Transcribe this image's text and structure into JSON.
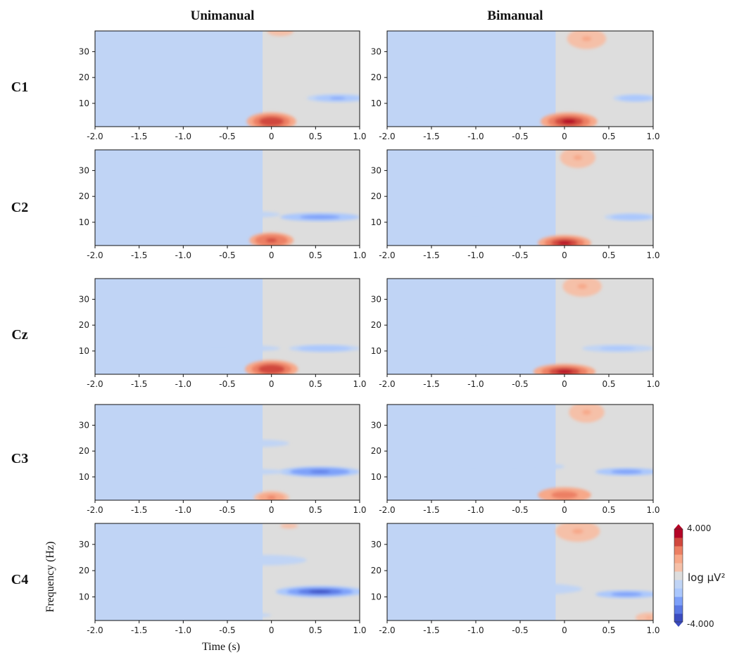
{
  "figure": {
    "columns": [
      "Unimanual",
      "Bimanual"
    ],
    "rows": [
      "C1",
      "C2",
      "Cz",
      "C3",
      "C4"
    ],
    "xlabel": "Time (s)",
    "ylabel": "Frequency (Hz)",
    "colorbar": {
      "max_label": "4.000",
      "min_label": "-4.000",
      "label": "log μV²"
    }
  },
  "chart_data": {
    "type": "heatmap",
    "xlim": [
      -2.0,
      1.0
    ],
    "ylim": [
      1,
      38
    ],
    "x_ticks": [
      -2.0,
      -1.5,
      -1.0,
      -0.5,
      0,
      0.5,
      1.0
    ],
    "x_tick_labels": [
      "-2.0",
      "-1.5",
      "-1.0",
      "-0.5",
      "0",
      "0.5",
      "1.0"
    ],
    "y_ticks": [
      10,
      20,
      30
    ],
    "clim": [
      -4.0,
      4.0
    ],
    "colormap": [
      "#3b4cc0",
      "#5a78e4",
      "#7da0f9",
      "#aac7fd",
      "#c0d4f5",
      "#dddddd",
      "#f5c0a8",
      "#f7a889",
      "#ec7f63",
      "#d0473d",
      "#b40426"
    ],
    "panels": [
      {
        "row": "C1",
        "condition": "Unimanual",
        "features": [
          {
            "t": 0.0,
            "f": 3,
            "dt": 0.28,
            "df": 3.5,
            "value": 3.5
          },
          {
            "t": 0.75,
            "f": 12,
            "dt": 0.35,
            "df": 1.6,
            "value": -2.2
          },
          {
            "t": 0.1,
            "f": 38,
            "dt": 0.15,
            "df": 2,
            "value": 0.8
          }
        ]
      },
      {
        "row": "C1",
        "condition": "Bimanual",
        "features": [
          {
            "t": 0.05,
            "f": 3,
            "dt": 0.32,
            "df": 3.5,
            "value": 3.6
          },
          {
            "t": 0.25,
            "f": 35,
            "dt": 0.22,
            "df": 4,
            "value": 1.4
          },
          {
            "t": 0.8,
            "f": 12,
            "dt": 0.25,
            "df": 1.5,
            "value": -1.8
          },
          {
            "t": -1.1,
            "f": 15,
            "dt": 0.5,
            "df": 2,
            "value": -0.8
          }
        ]
      },
      {
        "row": "C2",
        "condition": "Unimanual",
        "features": [
          {
            "t": 0.0,
            "f": 3,
            "dt": 0.25,
            "df": 3,
            "value": 3.0
          },
          {
            "t": 0.55,
            "f": 12,
            "dt": 0.45,
            "df": 1.6,
            "value": -2.6
          },
          {
            "t": -0.5,
            "f": 13,
            "dt": 0.6,
            "df": 1.5,
            "value": -0.9
          }
        ]
      },
      {
        "row": "C2",
        "condition": "Bimanual",
        "features": [
          {
            "t": 0.0,
            "f": 2,
            "dt": 0.3,
            "df": 3,
            "value": 3.6
          },
          {
            "t": 0.15,
            "f": 35,
            "dt": 0.2,
            "df": 4,
            "value": 1.2
          },
          {
            "t": 0.75,
            "f": 12,
            "dt": 0.3,
            "df": 1.5,
            "value": -1.9
          },
          {
            "t": -1.0,
            "f": 14,
            "dt": 0.6,
            "df": 3,
            "value": -0.8
          }
        ]
      },
      {
        "row": "Cz",
        "condition": "Unimanual",
        "features": [
          {
            "t": 0.0,
            "f": 3,
            "dt": 0.3,
            "df": 3.5,
            "value": 3.4
          },
          {
            "t": 0.6,
            "f": 11,
            "dt": 0.4,
            "df": 1.5,
            "value": -2.0
          },
          {
            "t": -0.6,
            "f": 11,
            "dt": 0.7,
            "df": 1.5,
            "value": -0.8
          }
        ]
      },
      {
        "row": "Cz",
        "condition": "Bimanual",
        "features": [
          {
            "t": 0.0,
            "f": 2,
            "dt": 0.35,
            "df": 3,
            "value": 3.7
          },
          {
            "t": 0.2,
            "f": 35,
            "dt": 0.22,
            "df": 4,
            "value": 1.4
          },
          {
            "t": 0.6,
            "f": 11,
            "dt": 0.4,
            "df": 1.5,
            "value": -1.6
          },
          {
            "t": -0.9,
            "f": 14,
            "dt": 0.4,
            "df": 2.5,
            "value": -0.8
          }
        ]
      },
      {
        "row": "C3",
        "condition": "Unimanual",
        "features": [
          {
            "t": 0.0,
            "f": 2,
            "dt": 0.2,
            "df": 2.5,
            "value": 2.0
          },
          {
            "t": 0.55,
            "f": 12,
            "dt": 0.45,
            "df": 2,
            "value": -3.0
          },
          {
            "t": -0.8,
            "f": 12,
            "dt": 1.0,
            "df": 1.5,
            "value": -1.0
          },
          {
            "t": -0.2,
            "f": 23,
            "dt": 0.4,
            "df": 1.5,
            "value": -0.9
          }
        ]
      },
      {
        "row": "C3",
        "condition": "Bimanual",
        "features": [
          {
            "t": 0.0,
            "f": 3,
            "dt": 0.3,
            "df": 3,
            "value": 2.4
          },
          {
            "t": 0.25,
            "f": 35,
            "dt": 0.2,
            "df": 4,
            "value": 1.3
          },
          {
            "t": 0.7,
            "f": 12,
            "dt": 0.35,
            "df": 1.5,
            "value": -2.4
          },
          {
            "t": -0.8,
            "f": 14,
            "dt": 0.8,
            "df": 2,
            "value": -1.0
          }
        ]
      },
      {
        "row": "C4",
        "condition": "Unimanual",
        "features": [
          {
            "t": 0.55,
            "f": 12,
            "dt": 0.5,
            "df": 2.2,
            "value": -3.6
          },
          {
            "t": -0.1,
            "f": 24,
            "dt": 0.5,
            "df": 2,
            "value": -1.0
          },
          {
            "t": -0.9,
            "f": 3,
            "dt": 0.9,
            "df": 1.5,
            "value": -0.8
          },
          {
            "t": 0.2,
            "f": 37,
            "dt": 0.2,
            "df": 2,
            "value": 0.5
          }
        ]
      },
      {
        "row": "C4",
        "condition": "Bimanual",
        "features": [
          {
            "t": 0.15,
            "f": 35,
            "dt": 0.25,
            "df": 4,
            "value": 1.4
          },
          {
            "t": 0.7,
            "f": 11,
            "dt": 0.35,
            "df": 1.5,
            "value": -2.5
          },
          {
            "t": -0.6,
            "f": 13,
            "dt": 0.8,
            "df": 2.5,
            "value": -1.1
          },
          {
            "t": 0.95,
            "f": 2,
            "dt": 0.15,
            "df": 2,
            "value": 1.4
          }
        ]
      }
    ]
  }
}
